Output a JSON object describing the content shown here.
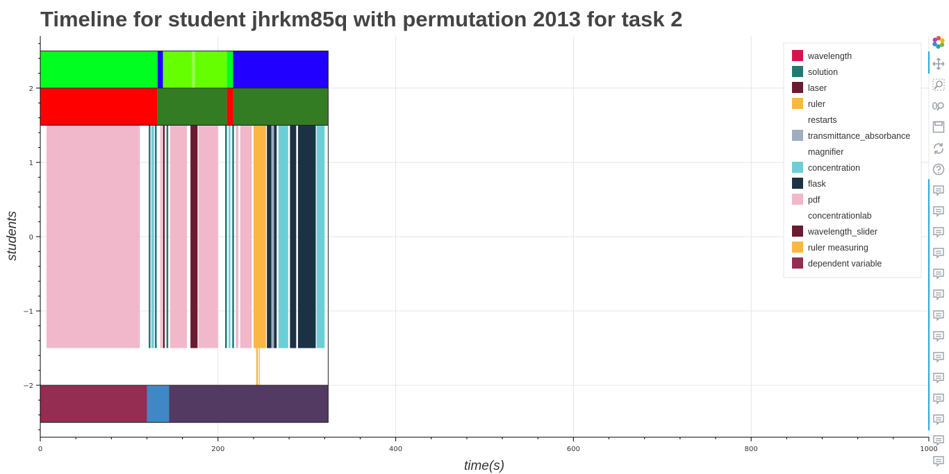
{
  "chart_data": {
    "type": "timeline",
    "title": "Timeline for student jhrkm85q with permutation 2013 for task 2",
    "xlabel": "time(s)",
    "ylabel": "students",
    "xlim": [
      0,
      1000
    ],
    "ylim": [
      -2.7,
      2.7
    ],
    "x_ticks": [
      0,
      200,
      400,
      600,
      800,
      1000
    ],
    "x_tick_labels": [
      "0",
      "200",
      "400",
      "600",
      "800",
      "1000"
    ],
    "y_ticks": [
      2,
      1,
      0,
      -1,
      -2
    ],
    "y_tick_labels": [
      "2",
      "1",
      "0",
      "−1",
      "−2"
    ],
    "grid": true,
    "legend_position": "top-right",
    "legend": [
      {
        "label": "wavelength",
        "color": "#d6154f"
      },
      {
        "label": "solution",
        "color": "#1f7a72"
      },
      {
        "label": "laser",
        "color": "#6b1a32"
      },
      {
        "label": "ruler",
        "color": "#fbb743"
      },
      {
        "label": "restarts",
        "color": "#ffffff"
      },
      {
        "label": "transmittance_absorbance",
        "color": "#9eadbf"
      },
      {
        "label": "magnifier",
        "color": "#ffffff"
      },
      {
        "label": "concentration",
        "color": "#6ccfd8"
      },
      {
        "label": "flask",
        "color": "#1c3144"
      },
      {
        "label": "pdf",
        "color": "#f0b8ca"
      },
      {
        "label": "concentrationlab",
        "color": "#ffffff"
      },
      {
        "label": "wavelength_slider",
        "color": "#6b1a32"
      },
      {
        "label": "ruler measuring",
        "color": "#fbb743"
      },
      {
        "label": "dependent variable",
        "color": "#952c52"
      }
    ],
    "rows": [
      {
        "y_range": [
          2.0,
          2.5
        ],
        "segments": [
          {
            "start": 0,
            "end": 132,
            "color": "#00ff21"
          },
          {
            "start": 132,
            "end": 138,
            "color": "#2200ff"
          },
          {
            "start": 138,
            "end": 171,
            "color": "#66ff00"
          },
          {
            "start": 171,
            "end": 174,
            "color": "#99ff55"
          },
          {
            "start": 174,
            "end": 210,
            "color": "#66ff00"
          },
          {
            "start": 210,
            "end": 217,
            "color": "#00ff21"
          },
          {
            "start": 217,
            "end": 324,
            "color": "#2200ff"
          }
        ]
      },
      {
        "y_range": [
          1.5,
          2.0
        ],
        "segments": [
          {
            "start": 0,
            "end": 132,
            "color": "#ff0000"
          },
          {
            "start": 132,
            "end": 210,
            "color": "#347c24"
          },
          {
            "start": 210,
            "end": 217,
            "color": "#ff0000"
          },
          {
            "start": 217,
            "end": 324,
            "color": "#347c24"
          }
        ]
      },
      {
        "y_range": [
          -1.5,
          1.5
        ],
        "segments": [
          {
            "start": 7,
            "end": 112,
            "color": "#f0b8ca"
          },
          {
            "start": 122,
            "end": 124,
            "color": "#1f7a72"
          },
          {
            "start": 125,
            "end": 128,
            "color": "#6ccfd8"
          },
          {
            "start": 129,
            "end": 131,
            "color": "#1f7a72"
          },
          {
            "start": 135,
            "end": 137,
            "color": "#f0b8ca"
          },
          {
            "start": 138,
            "end": 140,
            "color": "#6b1a32"
          },
          {
            "start": 142,
            "end": 144,
            "color": "#1f7a72"
          },
          {
            "start": 146,
            "end": 165,
            "color": "#f0b8ca"
          },
          {
            "start": 169,
            "end": 177,
            "color": "#6b1a32"
          },
          {
            "start": 178,
            "end": 200,
            "color": "#f0b8ca"
          },
          {
            "start": 208,
            "end": 210,
            "color": "#1f7a72"
          },
          {
            "start": 212,
            "end": 214,
            "color": "#6ccfd8"
          },
          {
            "start": 216,
            "end": 218,
            "color": "#1f7a72"
          },
          {
            "start": 220,
            "end": 223,
            "color": "#f0b8ca"
          },
          {
            "start": 225,
            "end": 238,
            "color": "#f0b8ca"
          },
          {
            "start": 240,
            "end": 254,
            "color": "#fbb743"
          },
          {
            "start": 255,
            "end": 260,
            "color": "#1c3144"
          },
          {
            "start": 260,
            "end": 263,
            "color": "#9eadbf"
          },
          {
            "start": 263,
            "end": 266,
            "color": "#1c3144"
          },
          {
            "start": 268,
            "end": 279,
            "color": "#6ccfd8"
          },
          {
            "start": 281,
            "end": 288,
            "color": "#1c3144"
          },
          {
            "start": 290,
            "end": 310,
            "color": "#1c3144"
          },
          {
            "start": 311,
            "end": 320,
            "color": "#6ccfd8"
          }
        ]
      },
      {
        "y_range": [
          -2.0,
          -1.5
        ],
        "segments": [
          {
            "start": 243,
            "end": 245,
            "color": "#fbb743"
          },
          {
            "start": 246,
            "end": 247,
            "color": "#fbb743"
          }
        ]
      },
      {
        "y_range": [
          -2.5,
          -2.0
        ],
        "segments": [
          {
            "start": 0,
            "end": 120,
            "color": "#952c52"
          },
          {
            "start": 120,
            "end": 145,
            "color": "#3f88c5"
          },
          {
            "start": 145,
            "end": 324,
            "color": "#523a62"
          }
        ]
      }
    ],
    "outline_boxes": [
      [
        0,
        1.5,
        324,
        2.5
      ],
      [
        0,
        -2.5,
        324,
        1.5
      ]
    ]
  },
  "toolbar": {
    "icons": [
      "bokeh-logo-icon",
      "pan-icon",
      "box-zoom-icon",
      "wheel-zoom-icon",
      "save-icon",
      "reset-icon",
      "help-icon",
      "hover-icon",
      "hover-icon",
      "hover-icon",
      "hover-icon",
      "hover-icon",
      "hover-icon",
      "hover-icon",
      "hover-icon",
      "hover-icon",
      "hover-icon",
      "hover-icon",
      "hover-icon",
      "hover-icon",
      "hover-icon"
    ],
    "more_label": "..."
  }
}
